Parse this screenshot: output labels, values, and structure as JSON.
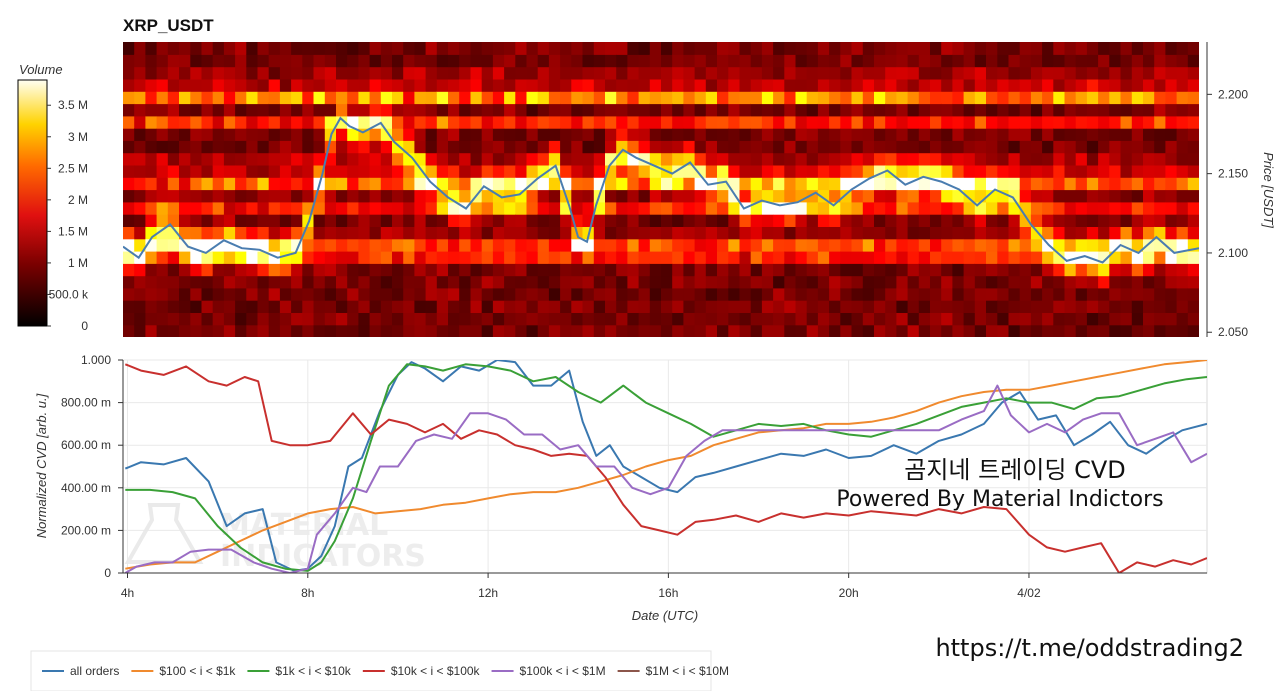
{
  "title": "XRP_USDT",
  "watermark": {
    "line1": "MATERIAL",
    "line2": "INDICATORS"
  },
  "overlay": {
    "korean": "곰지네 트레이딩 CVD",
    "powered": "Powered By Material Indictors",
    "url": "https://t.me/oddstrading2"
  },
  "colors": {
    "all orders": "#3a78b0",
    "$100 < i < $1k": "#f08a2e",
    "$1k < i < $10k": "#3aa037",
    "$10k < i < $100k": "#c8302e",
    "$100k < i < $1M": "#9a6cc4",
    "$1M < i < $10M": "#8c564b",
    "price_line": "#4a7db0"
  },
  "chart_data": [
    {
      "type": "heatmap",
      "title": "XRP_USDT",
      "colorbar": {
        "label": "Volume",
        "ticks": [
          "0",
          "500.0 k",
          "1 M",
          "1.5 M",
          "2 M",
          "2.5 M",
          "3 M",
          "3.5 M"
        ],
        "tick_values": [
          0,
          500000,
          1000000,
          1500000,
          2000000,
          2500000,
          3000000,
          3500000
        ],
        "range": [
          0,
          3900000
        ],
        "colormap": "hot"
      },
      "ylabel": "Price [USDT]",
      "y_ticks": [
        "2.050",
        "2.100",
        "2.150",
        "2.200"
      ],
      "y_tick_values": [
        2.05,
        2.1,
        2.15,
        2.2
      ],
      "ylim": [
        2.047,
        2.233
      ],
      "x_hours_range": [
        3.95,
        27.95
      ],
      "heat_bands": [
        {
          "price": 2.2,
          "strength": 0.7
        },
        {
          "price": 2.183,
          "strength": 0.35
        },
        {
          "price": 2.155,
          "strength": 0.35
        },
        {
          "price": 2.143,
          "strength": 0.5
        },
        {
          "price": 2.13,
          "strength": 0.35
        },
        {
          "price": 2.107,
          "strength": 0.5
        },
        {
          "price": 2.097,
          "strength": 0.35
        },
        {
          "price": 2.21,
          "strength": 0.2
        }
      ],
      "price_series": {
        "name": "price",
        "x_hours": [
          3.95,
          4.3,
          4.6,
          5.0,
          5.4,
          5.8,
          6.2,
          6.6,
          7.0,
          7.4,
          7.8,
          8.1,
          8.4,
          8.6,
          8.8,
          9.0,
          9.3,
          9.7,
          10.0,
          10.4,
          10.8,
          11.2,
          11.6,
          12.0,
          12.4,
          12.8,
          13.2,
          13.6,
          13.9,
          14.1,
          14.3,
          14.5,
          14.8,
          15.1,
          15.4,
          15.8,
          16.2,
          16.6,
          17.0,
          17.4,
          17.8,
          18.2,
          18.6,
          19.0,
          19.4,
          19.8,
          20.2,
          20.6,
          21.0,
          21.4,
          21.8,
          22.2,
          22.6,
          23.0,
          23.4,
          23.8,
          24.2,
          24.6,
          25.0,
          25.4,
          25.8,
          26.2,
          26.6,
          27.0,
          27.4,
          27.95
        ],
        "y": [
          2.104,
          2.097,
          2.11,
          2.118,
          2.104,
          2.1,
          2.108,
          2.103,
          2.102,
          2.097,
          2.1,
          2.12,
          2.15,
          2.175,
          2.185,
          2.18,
          2.176,
          2.182,
          2.17,
          2.16,
          2.145,
          2.135,
          2.128,
          2.142,
          2.135,
          2.137,
          2.147,
          2.155,
          2.13,
          2.11,
          2.107,
          2.13,
          2.155,
          2.165,
          2.16,
          2.155,
          2.15,
          2.157,
          2.143,
          2.145,
          2.128,
          2.133,
          2.13,
          2.132,
          2.138,
          2.13,
          2.14,
          2.147,
          2.152,
          2.143,
          2.148,
          2.145,
          2.14,
          2.13,
          2.14,
          2.135,
          2.118,
          2.105,
          2.095,
          2.098,
          2.094,
          2.105,
          2.1,
          2.11,
          2.1,
          2.103
        ]
      }
    },
    {
      "type": "line",
      "xlabel": "Date (UTC)",
      "ylabel": "Normalized CVD [arb. u.]",
      "x_ticks": [
        "4h",
        "8h",
        "12h",
        "16h",
        "20h",
        "4/02"
      ],
      "x_tick_hours": [
        4,
        8,
        12,
        16,
        20,
        24
      ],
      "xlim_hours": [
        3.9,
        27.95
      ],
      "y_ticks": [
        "0",
        "200.00 m",
        "400.00 m",
        "600.00 m",
        "800.00 m",
        "1.000"
      ],
      "y_tick_values": [
        0,
        0.2,
        0.4,
        0.6,
        0.8,
        1.0
      ],
      "ylim": [
        0,
        1.0
      ],
      "grid": true,
      "legend_position": "bottom",
      "series": [
        {
          "name": "all orders",
          "x_hours": [
            3.95,
            4.3,
            4.8,
            5.3,
            5.8,
            6.2,
            6.6,
            7.0,
            7.3,
            7.7,
            8.0,
            8.3,
            8.6,
            8.9,
            9.2,
            9.6,
            10.0,
            10.3,
            10.6,
            11.0,
            11.4,
            11.8,
            12.2,
            12.6,
            13.0,
            13.4,
            13.8,
            14.1,
            14.4,
            14.7,
            15.0,
            15.4,
            15.8,
            16.2,
            16.6,
            17.0,
            17.5,
            18.0,
            18.5,
            19.0,
            19.5,
            20.0,
            20.5,
            21.0,
            21.5,
            22.0,
            22.5,
            23.0,
            23.4,
            23.8,
            24.2,
            24.6,
            25.0,
            25.4,
            25.8,
            26.2,
            26.6,
            27.0,
            27.4,
            27.95
          ],
          "y": [
            0.49,
            0.52,
            0.51,
            0.54,
            0.43,
            0.22,
            0.28,
            0.3,
            0.05,
            0.01,
            0.02,
            0.08,
            0.22,
            0.5,
            0.54,
            0.76,
            0.93,
            0.99,
            0.96,
            0.9,
            0.97,
            0.95,
            1.0,
            0.99,
            0.88,
            0.88,
            0.95,
            0.71,
            0.55,
            0.6,
            0.5,
            0.45,
            0.4,
            0.38,
            0.45,
            0.47,
            0.5,
            0.53,
            0.56,
            0.55,
            0.58,
            0.54,
            0.55,
            0.6,
            0.56,
            0.62,
            0.65,
            0.7,
            0.8,
            0.85,
            0.72,
            0.74,
            0.6,
            0.65,
            0.71,
            0.6,
            0.56,
            0.62,
            0.67,
            0.7
          ]
        },
        {
          "name": "$100 < i < $1k",
          "x_hours": [
            3.95,
            4.5,
            5.0,
            5.5,
            6.0,
            6.5,
            7.0,
            7.5,
            8.0,
            8.5,
            9.0,
            9.5,
            10.0,
            10.5,
            11.0,
            11.5,
            12.0,
            12.5,
            13.0,
            13.5,
            14.0,
            14.5,
            15.0,
            15.5,
            16.0,
            16.5,
            17.0,
            17.5,
            18.0,
            18.5,
            19.0,
            19.5,
            20.0,
            20.5,
            21.0,
            21.5,
            22.0,
            22.5,
            23.0,
            23.5,
            24.0,
            24.5,
            25.0,
            25.5,
            26.0,
            26.5,
            27.0,
            27.5,
            27.95
          ],
          "y": [
            0.02,
            0.04,
            0.05,
            0.05,
            0.1,
            0.15,
            0.2,
            0.24,
            0.28,
            0.3,
            0.31,
            0.28,
            0.29,
            0.3,
            0.32,
            0.33,
            0.35,
            0.37,
            0.38,
            0.38,
            0.4,
            0.43,
            0.46,
            0.5,
            0.53,
            0.55,
            0.6,
            0.63,
            0.66,
            0.67,
            0.68,
            0.7,
            0.7,
            0.71,
            0.73,
            0.76,
            0.8,
            0.83,
            0.85,
            0.86,
            0.86,
            0.88,
            0.9,
            0.92,
            0.94,
            0.96,
            0.98,
            0.99,
            1.0
          ]
        },
        {
          "name": "$1k < i < $10k",
          "x_hours": [
            3.95,
            4.5,
            5.0,
            5.5,
            6.0,
            6.5,
            7.0,
            7.5,
            8.0,
            8.3,
            8.6,
            9.0,
            9.4,
            9.8,
            10.2,
            10.6,
            11.0,
            11.5,
            12.0,
            12.5,
            13.0,
            13.5,
            14.0,
            14.5,
            15.0,
            15.5,
            16.0,
            16.5,
            17.0,
            17.5,
            18.0,
            18.5,
            19.0,
            19.5,
            20.0,
            20.5,
            21.0,
            21.5,
            22.0,
            22.5,
            23.0,
            23.5,
            24.0,
            24.5,
            25.0,
            25.5,
            26.0,
            26.5,
            27.0,
            27.5,
            27.95
          ],
          "y": [
            0.39,
            0.39,
            0.38,
            0.35,
            0.22,
            0.12,
            0.05,
            0.02,
            0.01,
            0.05,
            0.15,
            0.35,
            0.62,
            0.88,
            0.98,
            0.97,
            0.95,
            0.98,
            0.97,
            0.95,
            0.9,
            0.92,
            0.85,
            0.8,
            0.88,
            0.8,
            0.75,
            0.7,
            0.64,
            0.67,
            0.7,
            0.69,
            0.7,
            0.67,
            0.65,
            0.64,
            0.67,
            0.7,
            0.74,
            0.78,
            0.8,
            0.82,
            0.8,
            0.8,
            0.77,
            0.82,
            0.83,
            0.86,
            0.89,
            0.91,
            0.92
          ]
        },
        {
          "name": "$10k < i < $100k",
          "x_hours": [
            3.95,
            4.3,
            4.8,
            5.3,
            5.8,
            6.2,
            6.6,
            6.9,
            7.2,
            7.6,
            8.0,
            8.5,
            9.0,
            9.4,
            9.8,
            10.2,
            10.6,
            11.0,
            11.4,
            11.8,
            12.2,
            12.6,
            13.0,
            13.4,
            13.8,
            14.2,
            14.6,
            15.0,
            15.4,
            15.8,
            16.2,
            16.6,
            17.0,
            17.5,
            18.0,
            18.5,
            19.0,
            19.5,
            20.0,
            20.5,
            21.0,
            21.5,
            22.0,
            22.5,
            23.0,
            23.5,
            24.0,
            24.4,
            24.8,
            25.2,
            25.6,
            26.0,
            26.4,
            26.8,
            27.2,
            27.6,
            27.95
          ],
          "y": [
            0.98,
            0.95,
            0.93,
            0.97,
            0.9,
            0.88,
            0.92,
            0.9,
            0.62,
            0.6,
            0.6,
            0.62,
            0.75,
            0.65,
            0.72,
            0.7,
            0.66,
            0.7,
            0.63,
            0.67,
            0.65,
            0.6,
            0.58,
            0.55,
            0.56,
            0.55,
            0.45,
            0.32,
            0.22,
            0.2,
            0.18,
            0.24,
            0.25,
            0.27,
            0.24,
            0.28,
            0.26,
            0.28,
            0.27,
            0.29,
            0.28,
            0.27,
            0.3,
            0.28,
            0.31,
            0.3,
            0.18,
            0.12,
            0.1,
            0.12,
            0.14,
            0.0,
            0.05,
            0.03,
            0.06,
            0.04,
            0.07
          ]
        },
        {
          "name": "$100k < i < $1M",
          "x_hours": [
            3.95,
            4.2,
            4.6,
            5.0,
            5.4,
            5.8,
            6.3,
            6.8,
            7.2,
            7.6,
            8.0,
            8.2,
            8.6,
            9.0,
            9.3,
            9.6,
            10.0,
            10.4,
            10.8,
            11.2,
            11.6,
            12.0,
            12.4,
            12.8,
            13.2,
            13.6,
            14.0,
            14.4,
            14.8,
            15.2,
            15.6,
            16.0,
            16.4,
            16.8,
            17.2,
            17.6,
            18.0,
            18.5,
            19.0,
            19.5,
            20.0,
            20.5,
            21.0,
            21.5,
            22.0,
            22.5,
            23.0,
            23.3,
            23.6,
            24.0,
            24.4,
            24.8,
            25.2,
            25.6,
            26.0,
            26.4,
            26.8,
            27.2,
            27.6,
            27.95
          ],
          "y": [
            0.0,
            0.03,
            0.05,
            0.05,
            0.1,
            0.11,
            0.11,
            0.05,
            0.02,
            0.0,
            0.02,
            0.18,
            0.28,
            0.4,
            0.38,
            0.5,
            0.5,
            0.62,
            0.65,
            0.63,
            0.75,
            0.75,
            0.72,
            0.65,
            0.65,
            0.58,
            0.6,
            0.5,
            0.5,
            0.4,
            0.37,
            0.4,
            0.55,
            0.62,
            0.67,
            0.67,
            0.67,
            0.67,
            0.67,
            0.67,
            0.67,
            0.67,
            0.67,
            0.67,
            0.67,
            0.72,
            0.76,
            0.88,
            0.74,
            0.66,
            0.7,
            0.66,
            0.72,
            0.75,
            0.75,
            0.6,
            0.63,
            0.66,
            0.52,
            0.56
          ]
        },
        {
          "name": "$1M < i < $10M",
          "x_hours": [],
          "y": []
        }
      ]
    }
  ]
}
